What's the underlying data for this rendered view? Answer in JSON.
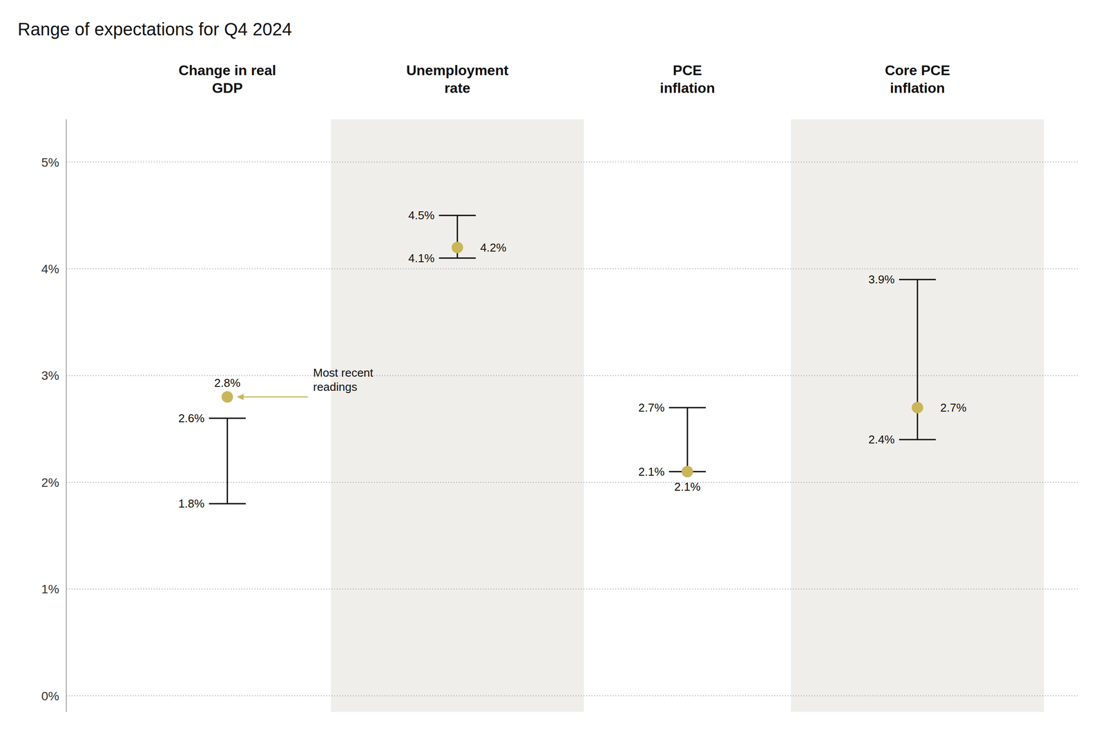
{
  "chart_data": {
    "type": "range",
    "title": "Range of expectations for Q4 2024",
    "categories": [
      "Change in real\nGDP",
      "Unemployment\nrate",
      "PCE\ninflation",
      "Core PCE\ninflation"
    ],
    "low": [
      1.8,
      4.1,
      2.1,
      2.4
    ],
    "high": [
      2.6,
      4.5,
      2.7,
      3.9
    ],
    "values": [
      2.8,
      4.2,
      2.1,
      2.7
    ],
    "low_labels": [
      "1.8%",
      "4.1%",
      "2.1%",
      "2.4%"
    ],
    "high_labels": [
      "2.6%",
      "4.5%",
      "2.7%",
      "3.9%"
    ],
    "value_labels": [
      "2.8%",
      "4.2%",
      "2.1%",
      "2.7%"
    ],
    "color": "#c9b55a",
    "data_labels": true,
    "annotations": [
      {
        "text": "Most recent\nreadings"
      }
    ],
    "ylim": [
      -0.15,
      5.4
    ],
    "yticks": [
      {
        "value": 0,
        "label": "0%"
      },
      {
        "value": 1,
        "label": "1%"
      },
      {
        "value": 2,
        "label": "2%"
      },
      {
        "value": 3,
        "label": "3%"
      },
      {
        "value": 4,
        "label": "4%"
      },
      {
        "value": 5,
        "label": "5%"
      }
    ],
    "grid": true
  }
}
